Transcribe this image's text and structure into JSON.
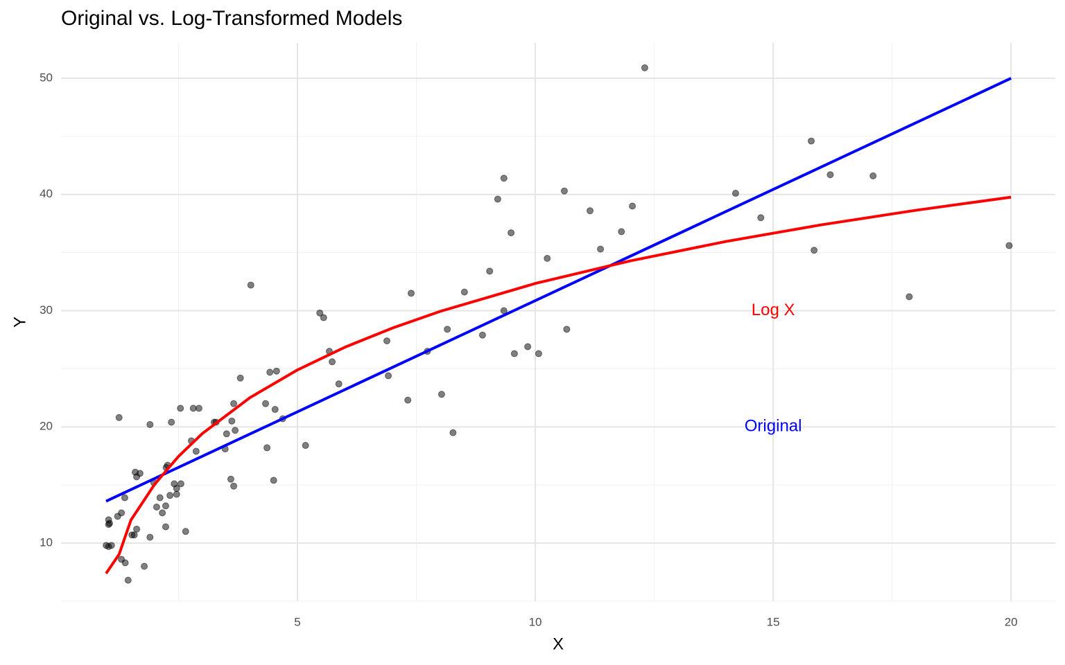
{
  "chart_data": {
    "type": "scatter",
    "title": "Original vs. Log-Transformed Models",
    "xlabel": "X",
    "ylabel": "Y",
    "xlim": [
      0.03,
      20.93
    ],
    "ylim": [
      4.99,
      53.04
    ],
    "xticks": [
      5,
      10,
      15,
      20
    ],
    "yticks": [
      10,
      20,
      30,
      40,
      50
    ],
    "xminor": [
      2.5,
      7.5,
      12.5,
      17.5
    ],
    "yminor": [
      5,
      15,
      25,
      35,
      45
    ],
    "grid": true,
    "points": {
      "color": "#000000",
      "opacity": 0.5,
      "x": [
        0.98,
        1.03,
        1.05,
        1.03,
        1.03,
        1.09,
        1.22,
        1.25,
        1.3,
        1.37,
        1.3,
        1.38,
        1.44,
        1.52,
        1.57,
        1.62,
        1.59,
        1.62,
        1.69,
        1.78,
        1.9,
        1.9,
        1.98,
        2.04,
        2.11,
        2.16,
        2.23,
        2.23,
        2.24,
        2.27,
        2.32,
        2.35,
        2.41,
        2.46,
        2.46,
        2.54,
        2.55,
        2.65,
        2.77,
        2.81,
        2.87,
        2.93,
        3.25,
        3.29,
        3.48,
        3.51,
        3.6,
        3.62,
        3.66,
        3.66,
        3.69,
        3.8,
        4.02,
        4.33,
        4.36,
        4.42,
        4.5,
        4.53,
        4.56,
        4.69,
        5.17,
        5.47,
        5.55,
        5.67,
        5.73,
        5.87,
        6.88,
        6.91,
        7.32,
        7.39,
        7.73,
        8.03,
        8.15,
        8.27,
        8.51,
        8.89,
        9.04,
        9.21,
        9.34,
        9.34,
        9.49,
        9.56,
        9.84,
        10.07,
        10.25,
        10.61,
        10.66,
        11.15,
        11.37,
        11.81,
        12.04,
        12.3,
        14.21,
        14.74,
        15.8,
        15.86,
        16.2,
        17.1,
        17.86,
        19.96
      ],
      "y": [
        9.8,
        12.0,
        11.7,
        11.6,
        9.7,
        9.8,
        12.3,
        20.8,
        12.6,
        13.9,
        8.6,
        8.3,
        6.8,
        10.7,
        10.7,
        11.2,
        16.1,
        15.7,
        16.0,
        8.0,
        10.5,
        20.2,
        15.2,
        13.1,
        13.9,
        12.6,
        13.2,
        11.4,
        16.5,
        16.7,
        14.1,
        20.4,
        15.1,
        14.7,
        14.2,
        21.6,
        15.1,
        11.0,
        18.8,
        21.6,
        17.9,
        21.6,
        20.4,
        20.4,
        18.1,
        19.4,
        15.5,
        20.5,
        22.0,
        14.9,
        19.7,
        24.2,
        32.2,
        22.0,
        18.2,
        24.7,
        15.4,
        21.5,
        24.8,
        20.7,
        18.4,
        29.8,
        29.4,
        26.5,
        25.6,
        23.7,
        27.4,
        24.4,
        22.3,
        31.5,
        26.5,
        22.8,
        28.4,
        19.5,
        31.6,
        27.9,
        33.4,
        39.6,
        41.4,
        30.0,
        36.7,
        26.3,
        26.9,
        26.3,
        34.5,
        40.3,
        28.4,
        38.6,
        35.3,
        36.8,
        39.0,
        50.9,
        40.1,
        38.0,
        44.6,
        35.2,
        41.7,
        41.6,
        31.2,
        35.6
      ]
    },
    "lines": [
      {
        "color": "#0000ff",
        "x": [
          0.977,
          20
        ],
        "values": [
          13.6,
          50.0
        ]
      },
      {
        "color": "#ff0000",
        "x": [
          0.977,
          1.25,
          1.5,
          2,
          2.5,
          3,
          4,
          5,
          6,
          7,
          8,
          10,
          12,
          14,
          16,
          18,
          20
        ],
        "values": [
          7.38,
          9.02,
          11.98,
          15.07,
          17.46,
          19.42,
          22.51,
          24.9,
          26.86,
          28.51,
          29.94,
          32.34,
          34.29,
          35.95,
          37.38,
          38.64,
          39.77
        ]
      }
    ],
    "annotations": [
      {
        "text": "Log X",
        "x": 15,
        "y": 30,
        "color": "#ff0000"
      },
      {
        "text": "Original",
        "x": 15,
        "y": 20,
        "color": "#0000ff"
      }
    ]
  }
}
